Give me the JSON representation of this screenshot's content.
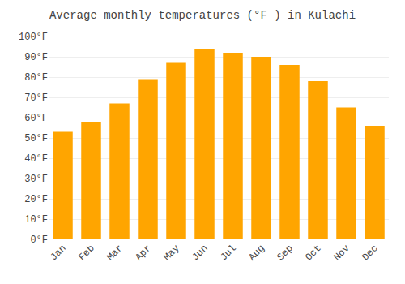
{
  "chart_data": {
    "type": "bar",
    "title": "Average monthly temperatures (°F ) in Kulāchi",
    "categories": [
      "Jan",
      "Feb",
      "Mar",
      "Apr",
      "May",
      "Jun",
      "Jul",
      "Aug",
      "Sep",
      "Oct",
      "Nov",
      "Dec"
    ],
    "values": [
      53,
      58,
      67,
      79,
      87,
      94,
      92,
      90,
      86,
      78,
      65,
      56
    ],
    "color": "#FFA500",
    "ylim": [
      0,
      100
    ],
    "yticks": [
      {
        "value": 0,
        "label": "0°F"
      },
      {
        "value": 10,
        "label": "10°F"
      },
      {
        "value": 20,
        "label": "20°F"
      },
      {
        "value": 30,
        "label": "30°F"
      },
      {
        "value": 40,
        "label": "40°F"
      },
      {
        "value": 50,
        "label": "50°F"
      },
      {
        "value": 60,
        "label": "60°F"
      },
      {
        "value": 70,
        "label": "70°F"
      },
      {
        "value": 80,
        "label": "80°F"
      },
      {
        "value": 90,
        "label": "90°F"
      },
      {
        "value": 100,
        "label": "100°F"
      }
    ],
    "grid": true
  }
}
